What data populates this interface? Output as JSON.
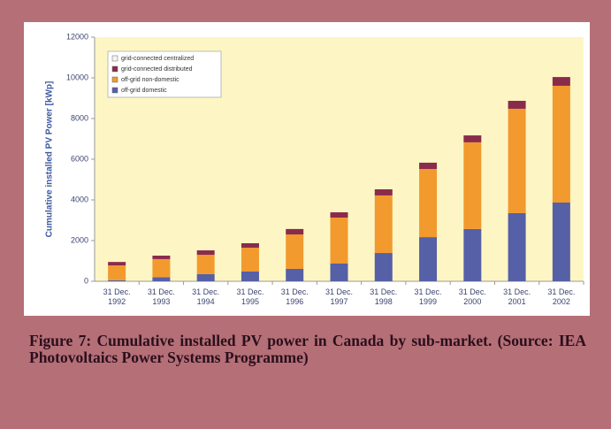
{
  "chart_data": {
    "type": "stacked_bar",
    "y_label": "Cumulative installed PV Power [kWp]",
    "categories": [
      "31 Dec. 1992",
      "31 Dec. 1993",
      "31 Dec. 1994",
      "31 Dec. 1995",
      "31 Dec. 1996",
      "31 Dec. 1997",
      "31 Dec. 1998",
      "31 Dec. 1999",
      "31 Dec. 2000",
      "31 Dec. 2001",
      "31 Dec. 2002"
    ],
    "series": [
      {
        "name": "off-grid domestic",
        "color": "#5560a6",
        "values": [
          50,
          200,
          350,
          480,
          610,
          870,
          1390,
          2170,
          2570,
          3350,
          3870
        ]
      },
      {
        "name": "off-grid non-domestic",
        "color": "#f29a2e",
        "values": [
          730,
          890,
          950,
          1170,
          1690,
          2260,
          2830,
          3350,
          4260,
          5130,
          5740
        ]
      },
      {
        "name": "grid-connected distributed",
        "color": "#8a2b4c",
        "values": [
          170,
          170,
          220,
          220,
          270,
          260,
          300,
          310,
          340,
          390,
          430
        ]
      },
      {
        "name": "grid-connected centralized",
        "color": "#f4f4f4",
        "values": [
          0,
          0,
          0,
          0,
          0,
          0,
          0,
          0,
          0,
          0,
          0
        ]
      }
    ],
    "ylim": [
      0,
      12000
    ],
    "yticks": [
      0,
      2000,
      4000,
      6000,
      8000,
      10000,
      12000
    ],
    "legend": "upper left",
    "grid": false,
    "plot_background": "#fdf6c4"
  },
  "figure_caption": "Figure 7: Cumulative installed PV power in Canada by sub-market. (Source: IEA Photovoltaics Power Systems Programme)"
}
